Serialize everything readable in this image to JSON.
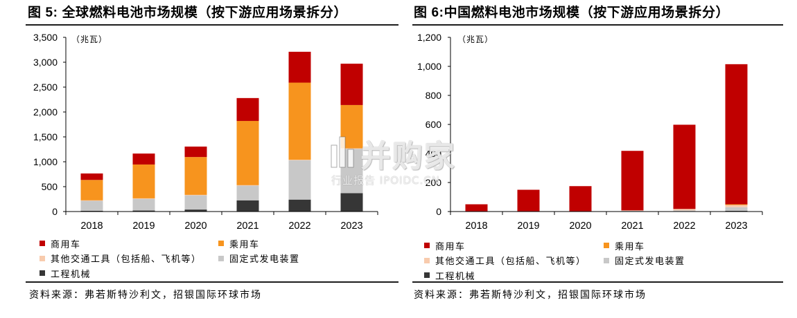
{
  "watermark": {
    "brand": "并购家",
    "caption": "行业报告 IPOIDC.CN"
  },
  "chart_data": [
    {
      "type": "bar",
      "stacked": true,
      "title": "图 5: 全球燃料电池市场规模（按下游应用场景拆分）",
      "unit_label": "（兆瓦）",
      "categories": [
        "2018",
        "2019",
        "2020",
        "2021",
        "2022",
        "2023"
      ],
      "ylim": [
        0,
        3500
      ],
      "ytick_labels": [
        "0",
        "500",
        "1,000",
        "1,500",
        "2,000",
        "2,500",
        "3,000",
        "3,500"
      ],
      "grid": false,
      "legend_position": "bottom",
      "series": [
        {
          "name": "商用车",
          "color": "#C00000",
          "values": [
            130,
            220,
            210,
            460,
            620,
            830
          ]
        },
        {
          "name": "乘用车",
          "color": "#F7941E",
          "values": [
            410,
            680,
            760,
            1290,
            1550,
            870
          ]
        },
        {
          "name": "其他交通工具（包括船、飞机等）",
          "color": "#F8CBAD",
          "values": [
            10,
            10,
            10,
            10,
            10,
            10
          ]
        },
        {
          "name": "固定式发电装置",
          "color": "#C8C8C8",
          "values": [
            200,
            235,
            285,
            295,
            790,
            890
          ]
        },
        {
          "name": "工程机械",
          "color": "#363636",
          "values": [
            15,
            20,
            40,
            225,
            240,
            370
          ]
        }
      ],
      "source": "资料来源：弗若斯特沙利文，招银国际环球市场"
    },
    {
      "type": "bar",
      "stacked": true,
      "title": "图 6:中国燃料电池市场规模（按下游应用场景拆分）",
      "unit_label": "（兆瓦）",
      "categories": [
        "2018",
        "2019",
        "2020",
        "2021",
        "2022",
        "2023"
      ],
      "ylim": [
        0,
        1200
      ],
      "ytick_labels": [
        "0",
        "200",
        "400",
        "600",
        "800",
        "1,000",
        "1,200"
      ],
      "grid": false,
      "legend_position": "bottom",
      "series": [
        {
          "name": "商用车",
          "color": "#C00000",
          "values": [
            50,
            150,
            175,
            410,
            580,
            965
          ]
        },
        {
          "name": "乘用车",
          "color": "#F7941E",
          "values": [
            0,
            0,
            0,
            0,
            0,
            5
          ]
        },
        {
          "name": "其他交通工具（包括船、飞机等）",
          "color": "#F8CBAD",
          "values": [
            0,
            0,
            0,
            3,
            10,
            15
          ]
        },
        {
          "name": "固定式发电装置",
          "color": "#C8C8C8",
          "values": [
            0,
            0,
            0,
            5,
            8,
            25
          ]
        },
        {
          "name": "工程机械",
          "color": "#363636",
          "values": [
            0,
            0,
            0,
            0,
            0,
            5
          ]
        }
      ],
      "source": "资料来源：弗若斯特沙利文，招银国际环球市场"
    }
  ]
}
